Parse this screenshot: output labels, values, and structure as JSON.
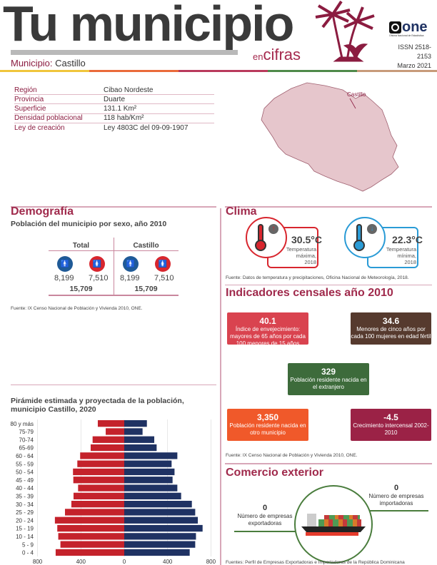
{
  "header": {
    "title": "Tu municipio",
    "subtitle_en": "en",
    "subtitle_cifras": "cifras",
    "municipio_label": "Municipio:",
    "municipio_name": "Castillo",
    "issn": "ISSN  2518-2153",
    "date": "Marzo 2021",
    "logo_text": "one",
    "logo_subtext": "Oficina Nacional de Estadística"
  },
  "strip_colors": [
    "#f0c53c",
    "#ea6a3a",
    "#b93a5c",
    "#4f8a4a",
    "#c79b7a"
  ],
  "info": [
    {
      "k": "Región",
      "v": "Cibao Nordeste"
    },
    {
      "k": "Provincia",
      "v": "Duarte"
    },
    {
      "k": "Superficie",
      "v": "131.1 Km²"
    },
    {
      "k": "Densidad poblacional",
      "v": "118 hab/Km²"
    },
    {
      "k": "Ley de creación",
      "v": "Ley 4803C del 09-09-1907"
    }
  ],
  "map": {
    "label": "Castillo"
  },
  "demografia": {
    "title": "Demografía",
    "subtitle": "Población del municipio por sexo, año 2010",
    "total": {
      "header": "Total",
      "men": "8,199",
      "women": "7,510",
      "sum": "15,709"
    },
    "local": {
      "header": "Castillo",
      "men": "8,199",
      "women": "7,510",
      "sum": "15,709"
    },
    "source": "Fuente: IX Censo Nacional de Población y Vivienda 2010, ONE."
  },
  "pyramid": {
    "title": "Pirámide estimada y proyectada de la población, municipio Castillo, 2020"
  },
  "chart_data": {
    "type": "bar",
    "orientation": "horizontal-pyramid",
    "title": "Pirámide estimada y proyectada de la población, municipio Castillo, 2020",
    "categories": [
      "80 y más",
      "75-79",
      "70-74",
      "65-69",
      "60 - 64",
      "55 - 59",
      "50 - 54",
      "45 - 49",
      "40 - 44",
      "35 - 39",
      "30 - 34",
      "25 - 29",
      "20 - 24",
      "15 - 19",
      "10 - 14",
      "5 -  9",
      "0 - 4"
    ],
    "series": [
      {
        "color": "#c4222b",
        "side": "left",
        "values": [
          244,
          171,
          292,
          310,
          407,
          433,
          473,
          470,
          426,
          468,
          488,
          547,
          640,
          618,
          609,
          589,
          633
        ]
      },
      {
        "color": "#1f3263",
        "side": "right",
        "values": [
          209,
          169,
          277,
          299,
          490,
          437,
          464,
          446,
          490,
          525,
          624,
          655,
          679,
          723,
          662,
          655,
          604
        ]
      }
    ],
    "xticks": [
      "800",
      "400",
      "0",
      "400",
      "800"
    ],
    "xlim": [
      -800,
      800
    ],
    "grid": true
  },
  "clima": {
    "title": "Clima",
    "max": {
      "value": "30.5°C",
      "label": "Temperatura máxima, 2018"
    },
    "min": {
      "value": "22.3°C",
      "label": "Temperatura mínima, 2018"
    },
    "source": "Fuente: Datos de temperatura y precipitaciones, Oficina Nacional de Meteorología, 2018."
  },
  "indicadores": {
    "title": "Indicadores censales año 2010",
    "items": [
      {
        "value": "40.1",
        "label": "Índice de envejecimiento: mayores de 65 años por cada 100 menores de 15 años",
        "color": "#d9434f"
      },
      {
        "value": "34.6",
        "label": "Menores de cinco años por cada 100 mujeres en edad fértil",
        "color": "#563a2e"
      },
      {
        "value": "329",
        "label": "Población residente nacida en el extranjero",
        "color": "#3d6b3b"
      },
      {
        "value": "3,350",
        "label": "Población residente nacida en otro municipio",
        "color": "#f0592a"
      },
      {
        "value": "-4.5",
        "label": "Crecimiento intercensal 2002-2010",
        "color": "#9b2246"
      }
    ],
    "source": "Fuente: IX Censo Nacional de Población y Vivienda 2010, ONE."
  },
  "comercio": {
    "title": "Comercio exterior",
    "export": {
      "value": "0",
      "label": "Número de empresas exportadoras"
    },
    "import": {
      "value": "0",
      "label": "Número de empresas importadoras"
    },
    "source": "Fuentes: Perfil de Empresas Exportadoras e Importadoras de la República Dominicana"
  }
}
